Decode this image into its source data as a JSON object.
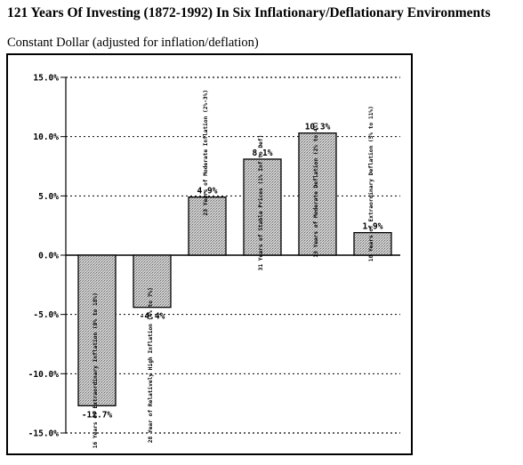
{
  "title": "121 Years Of Investing (1872-1992) In Six Inflationary/Deflationary Environments",
  "subtitle": "Constant Dollar (adjusted for inflation/deflation)",
  "chart_data": {
    "type": "bar",
    "categories": [
      "16 Years of Extraordinary Inflation (8% to 18%)",
      "28 Year of Relatively High Inflation (4% to 7%)",
      "23 Years of Moderate Inflation (2%-3%)",
      "31 Years of Stable Prices (1% Inf to Def)",
      "13 Years of Moderate Deflation (2% to 4%)",
      "10 Years of Extraordinary Deflation (5% to 11%)"
    ],
    "values": [
      -12.7,
      -4.4,
      4.9,
      8.1,
      10.3,
      1.9
    ],
    "value_labels": [
      "-12.7%",
      "-4.4%",
      "4.9%",
      "8.1%",
      "10.3%",
      "1.9%"
    ],
    "yticks": [
      15.0,
      10.0,
      5.0,
      0.0,
      -5.0,
      -10.0,
      -15.0
    ],
    "ytick_labels": [
      "15.0%",
      "10.0%",
      "5.0%",
      "0.0%",
      "-5.0%",
      "-10.0%",
      "-15.0%"
    ],
    "ylim": [
      -15,
      15
    ],
    "grid": true,
    "bar_color": "#c8c8c8"
  }
}
